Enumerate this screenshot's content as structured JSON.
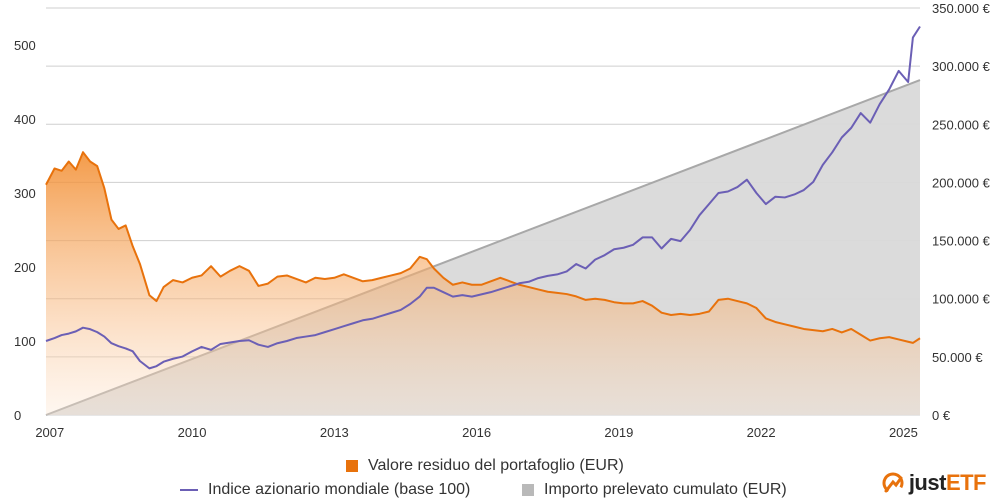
{
  "colors": {
    "portfolio": "#e8720c",
    "index": "#6b5fb5",
    "withdrawn": "#b9b9b9",
    "grid": "#cfcfcf",
    "brand": "#e8720c"
  },
  "legend": {
    "portfolio_label": "Valore residuo del portafoglio (EUR)",
    "index_label": "Indice azionario mondiale (base 100)",
    "withdrawn_label": "Importo prelevato cumulato (EUR)"
  },
  "logo": {
    "text_a": "just",
    "text_b": "ETF",
    "icon": "justetf-logo-icon"
  },
  "chart_data": {
    "type": "line",
    "x_ticks": [
      "2007",
      "2010",
      "2013",
      "2016",
      "2019",
      "2022",
      "2025"
    ],
    "x_range": [
      2006.92,
      2025.35
    ],
    "left_axis": {
      "ticks": [
        "0",
        "100",
        "200",
        "300",
        "400",
        "500"
      ],
      "range": [
        0,
        550
      ]
    },
    "right_axis": {
      "ticks": [
        "0 €",
        "50.000 €",
        "100.000 €",
        "150.000 €",
        "200.000 €",
        "250.000 €",
        "300.000 €",
        "350.000 €"
      ],
      "range": [
        0,
        350000
      ]
    },
    "grid": true,
    "legend_position": "bottom",
    "series": [
      {
        "name": "Valore residuo del portafoglio (EUR)",
        "axis": "right",
        "style": "area-gradient",
        "x": [
          2006.92,
          2007.1,
          2007.25,
          2007.4,
          2007.55,
          2007.7,
          2007.85,
          2008.0,
          2008.15,
          2008.3,
          2008.45,
          2008.6,
          2008.75,
          2008.9,
          2009.1,
          2009.25,
          2009.4,
          2009.6,
          2009.8,
          2010.0,
          2010.2,
          2010.4,
          2010.6,
          2010.8,
          2011.0,
          2011.2,
          2011.4,
          2011.6,
          2011.8,
          2012.0,
          2012.2,
          2012.4,
          2012.6,
          2012.8,
          2013.0,
          2013.2,
          2013.4,
          2013.6,
          2013.8,
          2014.0,
          2014.2,
          2014.4,
          2014.6,
          2014.8,
          2014.95,
          2015.1,
          2015.3,
          2015.5,
          2015.7,
          2015.9,
          2016.1,
          2016.3,
          2016.5,
          2016.7,
          2016.9,
          2017.1,
          2017.3,
          2017.5,
          2017.7,
          2017.9,
          2018.1,
          2018.3,
          2018.5,
          2018.7,
          2018.9,
          2019.1,
          2019.3,
          2019.5,
          2019.7,
          2019.9,
          2020.1,
          2020.3,
          2020.5,
          2020.7,
          2020.9,
          2021.1,
          2021.3,
          2021.5,
          2021.7,
          2021.9,
          2022.1,
          2022.3,
          2022.5,
          2022.7,
          2022.9,
          2023.1,
          2023.3,
          2023.5,
          2023.7,
          2023.9,
          2024.1,
          2024.3,
          2024.5,
          2024.7,
          2024.9,
          2025.1,
          2025.2,
          2025.35
        ],
        "values": [
          198000,
          212000,
          210000,
          218000,
          211000,
          226000,
          218000,
          214000,
          195000,
          168000,
          160000,
          163000,
          145000,
          130000,
          103000,
          98000,
          110000,
          116000,
          114000,
          118000,
          120000,
          128000,
          119000,
          124000,
          128000,
          124000,
          111000,
          113000,
          119000,
          120000,
          117000,
          114000,
          118000,
          117000,
          118000,
          121000,
          118000,
          115000,
          116000,
          118000,
          120000,
          122000,
          126000,
          136000,
          134000,
          126000,
          118000,
          112000,
          114000,
          112000,
          112000,
          115000,
          118000,
          115000,
          112000,
          110000,
          108000,
          106000,
          105000,
          104000,
          102000,
          99000,
          100000,
          99000,
          97000,
          96000,
          96000,
          98000,
          94000,
          88000,
          86000,
          87000,
          86000,
          87000,
          89000,
          99000,
          100000,
          98000,
          96000,
          92000,
          83000,
          80000,
          78000,
          76000,
          74000,
          73000,
          72000,
          74000,
          71000,
          74000,
          69000,
          64000,
          66000,
          67000,
          65000,
          63000,
          62000,
          66000
        ]
      },
      {
        "name": "Indice azionario mondiale (base 100)",
        "axis": "left",
        "style": "line",
        "x": [
          2006.92,
          2007.1,
          2007.25,
          2007.4,
          2007.55,
          2007.7,
          2007.85,
          2008.0,
          2008.15,
          2008.3,
          2008.45,
          2008.6,
          2008.75,
          2008.9,
          2009.1,
          2009.25,
          2009.4,
          2009.6,
          2009.8,
          2010.0,
          2010.2,
          2010.4,
          2010.6,
          2010.8,
          2011.0,
          2011.2,
          2011.4,
          2011.6,
          2011.8,
          2012.0,
          2012.2,
          2012.4,
          2012.6,
          2012.8,
          2013.0,
          2013.2,
          2013.4,
          2013.6,
          2013.8,
          2014.0,
          2014.2,
          2014.4,
          2014.6,
          2014.8,
          2014.95,
          2015.1,
          2015.3,
          2015.5,
          2015.7,
          2015.9,
          2016.1,
          2016.3,
          2016.5,
          2016.7,
          2016.9,
          2017.1,
          2017.3,
          2017.5,
          2017.7,
          2017.9,
          2018.1,
          2018.3,
          2018.5,
          2018.7,
          2018.9,
          2019.1,
          2019.3,
          2019.5,
          2019.7,
          2019.9,
          2020.1,
          2020.3,
          2020.5,
          2020.7,
          2020.9,
          2021.1,
          2021.3,
          2021.5,
          2021.7,
          2021.9,
          2022.1,
          2022.3,
          2022.5,
          2022.7,
          2022.9,
          2023.1,
          2023.3,
          2023.5,
          2023.7,
          2023.9,
          2024.1,
          2024.3,
          2024.5,
          2024.7,
          2024.9,
          2025.1,
          2025.2,
          2025.35
        ],
        "values": [
          100,
          104,
          108,
          110,
          113,
          118,
          116,
          112,
          106,
          97,
          93,
          90,
          86,
          73,
          63,
          66,
          72,
          76,
          79,
          86,
          92,
          88,
          96,
          98,
          100,
          101,
          95,
          92,
          97,
          100,
          104,
          106,
          108,
          112,
          116,
          120,
          124,
          128,
          130,
          134,
          138,
          142,
          150,
          160,
          172,
          172,
          166,
          160,
          162,
          160,
          163,
          166,
          170,
          174,
          178,
          180,
          185,
          188,
          190,
          194,
          204,
          198,
          210,
          216,
          224,
          226,
          230,
          240,
          240,
          225,
          238,
          235,
          250,
          270,
          285,
          300,
          302,
          308,
          318,
          300,
          285,
          295,
          294,
          298,
          304,
          315,
          338,
          355,
          375,
          388,
          408,
          395,
          420,
          440,
          465,
          450,
          510,
          525
        ]
      },
      {
        "name": "Importo prelevato cumulato (EUR)",
        "axis": "right",
        "style": "area",
        "x": [
          2006.92,
          2025.35
        ],
        "values": [
          0,
          288000
        ]
      }
    ]
  }
}
